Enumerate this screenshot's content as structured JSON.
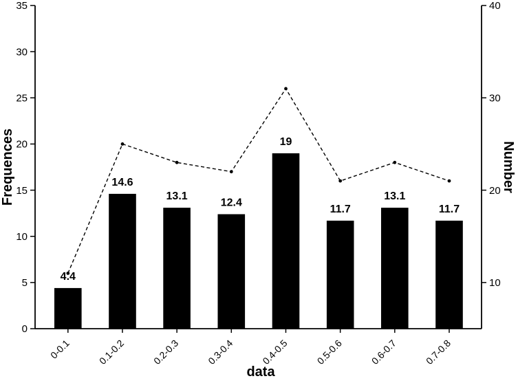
{
  "chart_data": {
    "type": "bar",
    "title": "",
    "categories": [
      "0-0.1",
      "0.1-0.2",
      "0.2-0.3",
      "0.3-0.4",
      "0.4-0.5",
      "0.5-0.6",
      "0.6-0.7",
      "0.7-0.8"
    ],
    "series": [
      {
        "name": "Frequences",
        "type": "bar",
        "axis": "left",
        "values": [
          4.4,
          14.6,
          13.1,
          12.4,
          19,
          11.7,
          13.1,
          11.7
        ],
        "value_labels": [
          "4.4",
          "14.6",
          "13.1",
          "12.4",
          "19",
          "11.7",
          "13.1",
          "11.7"
        ],
        "color": "#000000"
      },
      {
        "name": "Number",
        "type": "line",
        "axis": "right",
        "values": [
          11,
          25,
          23,
          22,
          31,
          21,
          23,
          21
        ],
        "line_style": "dashed",
        "marker": "dot",
        "color": "#000000"
      }
    ],
    "x_axis": {
      "label": "data",
      "tick_rotation_deg": -45
    },
    "left_axis": {
      "label": "Frequences",
      "ticks": [
        0,
        5,
        10,
        15,
        20,
        25,
        30,
        35
      ],
      "range": [
        0,
        35
      ]
    },
    "right_axis": {
      "label": "Number",
      "ticks": [
        10,
        20,
        30,
        40
      ],
      "range": [
        5,
        40
      ]
    },
    "legend": "none",
    "grid": false,
    "colors": {
      "bar": "#000000",
      "line": "#000000",
      "text": "#000000",
      "background": "#ffffff"
    }
  }
}
